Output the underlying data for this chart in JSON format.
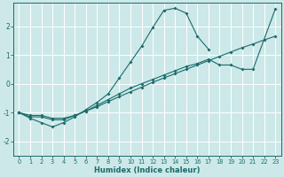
{
  "title": "",
  "xlabel": "Humidex (Indice chaleur)",
  "bg_color": "#cde8e8",
  "line_color": "#1a6b6b",
  "grid_color": "#b8d8d8",
  "xlim": [
    -0.5,
    23.5
  ],
  "ylim": [
    -2.5,
    2.8
  ],
  "xticks": [
    0,
    1,
    2,
    3,
    4,
    5,
    6,
    7,
    8,
    9,
    10,
    11,
    12,
    13,
    14,
    15,
    16,
    17,
    18,
    19,
    20,
    21,
    22,
    23
  ],
  "yticks": [
    -2,
    -1,
    0,
    1,
    2
  ],
  "line1_x": [
    0,
    1,
    2,
    3,
    4,
    5,
    6,
    7,
    8,
    9,
    10,
    11,
    12,
    13,
    14,
    15,
    16,
    17
  ],
  "line1_y": [
    -1.0,
    -1.2,
    -1.35,
    -1.5,
    -1.35,
    -1.15,
    -0.9,
    -0.65,
    -0.35,
    0.2,
    0.75,
    1.3,
    1.95,
    2.55,
    2.62,
    2.45,
    1.65,
    1.2
  ],
  "line2_x": [
    0,
    1,
    2,
    3,
    4,
    5,
    6,
    7,
    8,
    9,
    10,
    11,
    12,
    13,
    14,
    15,
    16,
    17,
    18,
    19,
    20,
    21,
    23
  ],
  "line2_y": [
    -1.0,
    -1.15,
    -1.15,
    -1.25,
    -1.25,
    -1.1,
    -0.95,
    -0.75,
    -0.55,
    -0.35,
    -0.15,
    0.0,
    0.15,
    0.3,
    0.45,
    0.6,
    0.7,
    0.85,
    0.65,
    0.65,
    0.5,
    0.5,
    2.6
  ],
  "line3_x": [
    0,
    1,
    2,
    3,
    4,
    5,
    6,
    7,
    8,
    9,
    10,
    11,
    12,
    13,
    14,
    15,
    16,
    17,
    18,
    19,
    20,
    21,
    22,
    23
  ],
  "line3_y": [
    -1.0,
    -1.1,
    -1.1,
    -1.2,
    -1.2,
    -1.1,
    -0.95,
    -0.8,
    -0.62,
    -0.45,
    -0.28,
    -0.12,
    0.05,
    0.2,
    0.35,
    0.5,
    0.65,
    0.8,
    0.95,
    1.1,
    1.25,
    1.38,
    1.52,
    1.65
  ]
}
